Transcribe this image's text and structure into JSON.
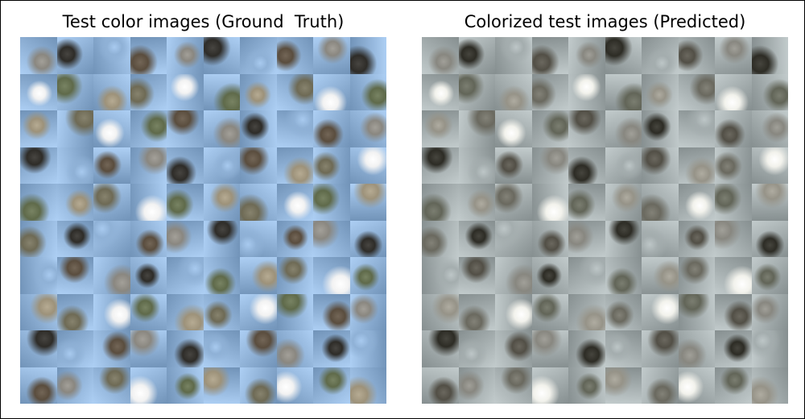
{
  "panels": [
    {
      "title": "Test color images (Ground  Truth)",
      "rows": 10,
      "cols": 10,
      "mode": "color"
    },
    {
      "title": "Colorized test images (Predicted)",
      "rows": 10,
      "cols": 10,
      "mode": "predicted"
    }
  ],
  "palette": {
    "sky": "#8fb1d6",
    "white": "#f2f2f2",
    "dark": "#2e2c28",
    "olive": "#6e6a55",
    "gray": "#8a8780",
    "tan": "#9d927a",
    "brown": "#5a4d3e",
    "green": "#5f6a4a"
  }
}
